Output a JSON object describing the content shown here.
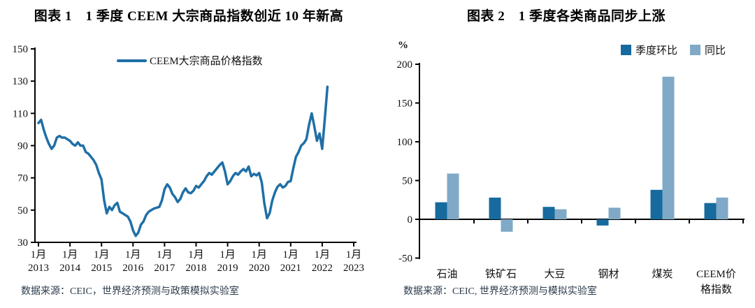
{
  "colors": {
    "line": "#1F6FA6",
    "bar_dark": "#176A9E",
    "bar_light": "#7FA9C6",
    "axis": "#000000",
    "tick_text": "#111111"
  },
  "chart_data": [
    {
      "type": "line",
      "title": "图表 1　1 季度 CEEM 大宗商品指数创近 10 年新高",
      "source": "数据来源：CEIC，世界经济预测与政策模拟实验室",
      "legend_position": "top",
      "grid": false,
      "ylim": [
        30,
        150
      ],
      "y_ticks": [
        150,
        130,
        110,
        90,
        70,
        50,
        30
      ],
      "x_tick_month": "1月",
      "x_tick_years": [
        "2013",
        "2014",
        "2015",
        "2016",
        "2017",
        "2018",
        "2019",
        "2020",
        "2021",
        "2022",
        "2023"
      ],
      "x_start": "2013-01",
      "x_end": "2022-03",
      "x_freq": "monthly",
      "series": [
        {
          "name": "CEEM大宗商品价格指数",
          "values": [
            104,
            106,
            100,
            95,
            91,
            88,
            90,
            95,
            96,
            95,
            95,
            94,
            93,
            91,
            90,
            92,
            90,
            90,
            86,
            85,
            83,
            81,
            78,
            73,
            69,
            56,
            48,
            52,
            50,
            53,
            54.5,
            49,
            48,
            47,
            46,
            43,
            37.5,
            34,
            36,
            41,
            43,
            47,
            49,
            50,
            51,
            51.5,
            52,
            56,
            63,
            66,
            64,
            60,
            58,
            55,
            57,
            61,
            63.5,
            61,
            60.5,
            62,
            65,
            64,
            66,
            68,
            71,
            73,
            72,
            74,
            76,
            78,
            79.5,
            74,
            66,
            68,
            71,
            73,
            72,
            74,
            75.5,
            74,
            77,
            71,
            72.5,
            71.5,
            73,
            67,
            54,
            45,
            48,
            56,
            61,
            64.5,
            66,
            64,
            65,
            67.5,
            68,
            76,
            83,
            86,
            90,
            91.5,
            94,
            103,
            110,
            102,
            93,
            97.5,
            88,
            107,
            126.5
          ]
        }
      ]
    },
    {
      "type": "bar",
      "title": "图表 2　1 季度各类商品同步上涨",
      "source": "数据来源：CEIC, 世界经济预测与模拟实验室",
      "ylabel": "%",
      "legend_position": "top-right",
      "grid": false,
      "ylim": [
        -50,
        200
      ],
      "y_ticks": [
        200,
        150,
        100,
        50,
        0,
        -50
      ],
      "categories": [
        "石油",
        "铁矿石",
        "大豆",
        "钢材",
        "煤炭",
        "CEEM价格指数"
      ],
      "category_display_lines": [
        [
          "石油"
        ],
        [
          "铁矿石"
        ],
        [
          "大豆"
        ],
        [
          "钢材"
        ],
        [
          "煤炭"
        ],
        [
          "CEEM价",
          "格指数"
        ]
      ],
      "series": [
        {
          "name": "季度环比",
          "color": "#176A9E",
          "values": [
            22,
            28,
            16,
            -8,
            38,
            21
          ]
        },
        {
          "name": "同比",
          "color": "#7FA9C6",
          "values": [
            59,
            -16,
            13,
            15,
            184,
            28
          ]
        }
      ]
    }
  ]
}
